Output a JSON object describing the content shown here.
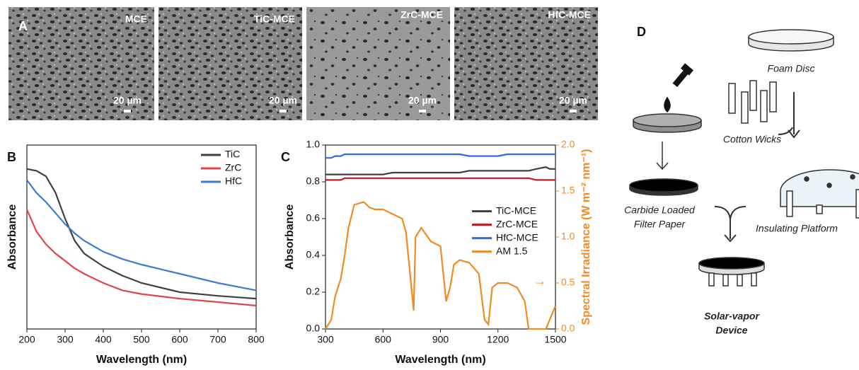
{
  "panel_a": {
    "label": "A",
    "images": [
      {
        "title": "MCE",
        "scale": "20 µm"
      },
      {
        "title": "TiC-MCE",
        "scale": "20 µm"
      },
      {
        "title": "ZrC-MCE",
        "scale": "20 µm"
      },
      {
        "title": "HfC-MCE",
        "scale": "20 µm"
      }
    ]
  },
  "chart_data": [
    {
      "type": "line",
      "panel_label": "B",
      "x_label": "Wavelength (nm)",
      "y_label": "Absorbance",
      "x": [
        200,
        225,
        250,
        275,
        300,
        325,
        350,
        400,
        450,
        500,
        600,
        700,
        800
      ],
      "series": [
        {
          "name": "TiC",
          "color": "#404040",
          "values": [
            0.87,
            0.86,
            0.83,
            0.74,
            0.6,
            0.48,
            0.41,
            0.34,
            0.29,
            0.25,
            0.2,
            0.18,
            0.165
          ]
        },
        {
          "name": "ZrC",
          "color": "#e0454c",
          "values": [
            0.65,
            0.53,
            0.46,
            0.41,
            0.37,
            0.33,
            0.3,
            0.25,
            0.21,
            0.19,
            0.165,
            0.146,
            0.127
          ]
        },
        {
          "name": "HfC",
          "color": "#3a7bd5",
          "values": [
            0.81,
            0.74,
            0.69,
            0.63,
            0.57,
            0.52,
            0.48,
            0.42,
            0.38,
            0.35,
            0.3,
            0.25,
            0.21
          ]
        }
      ],
      "xlim": [
        200,
        800
      ],
      "xticks": [
        200,
        300,
        400,
        500,
        600,
        700,
        800
      ],
      "ylim": [
        0,
        1
      ],
      "yticks": [],
      "legend": "upper right"
    },
    {
      "type": "line",
      "panel_label": "C",
      "x_label": "Wavelength (nm)",
      "y_label": "Absorbance",
      "y2_label": "Spectral Irradiance (W m⁻² nm⁻¹)",
      "annotation": "→",
      "x": [
        300,
        330,
        350,
        380,
        400,
        420,
        450,
        480,
        500,
        530,
        560,
        600,
        650,
        700,
        720,
        760,
        770,
        800,
        850,
        900,
        930,
        950,
        970,
        1000,
        1050,
        1100,
        1130,
        1150,
        1170,
        1200,
        1250,
        1300,
        1340,
        1360,
        1400,
        1450,
        1470,
        1500
      ],
      "series": [
        {
          "name": "TiC-MCE",
          "color": "#404040",
          "values": [
            0.84,
            0.84,
            0.84,
            0.84,
            0.84,
            0.84,
            0.84,
            0.84,
            0.84,
            0.84,
            0.84,
            0.84,
            0.85,
            0.85,
            0.85,
            0.85,
            0.85,
            0.85,
            0.85,
            0.85,
            0.85,
            0.85,
            0.85,
            0.85,
            0.86,
            0.86,
            0.86,
            0.86,
            0.86,
            0.86,
            0.86,
            0.86,
            0.86,
            0.86,
            0.87,
            0.88,
            0.87,
            0.87
          ]
        },
        {
          "name": "ZrC-MCE",
          "color": "#c8161d",
          "values": [
            0.81,
            0.81,
            0.81,
            0.81,
            0.82,
            0.82,
            0.82,
            0.82,
            0.82,
            0.82,
            0.82,
            0.82,
            0.82,
            0.82,
            0.82,
            0.82,
            0.82,
            0.82,
            0.82,
            0.82,
            0.82,
            0.82,
            0.82,
            0.82,
            0.82,
            0.82,
            0.82,
            0.82,
            0.82,
            0.82,
            0.82,
            0.82,
            0.82,
            0.82,
            0.81,
            0.81,
            0.81,
            0.81
          ]
        },
        {
          "name": "HfC-MCE",
          "color": "#2a6de0",
          "values": [
            0.93,
            0.93,
            0.94,
            0.94,
            0.95,
            0.95,
            0.95,
            0.95,
            0.95,
            0.95,
            0.95,
            0.95,
            0.95,
            0.95,
            0.95,
            0.95,
            0.95,
            0.95,
            0.95,
            0.95,
            0.95,
            0.95,
            0.95,
            0.95,
            0.94,
            0.94,
            0.94,
            0.94,
            0.94,
            0.94,
            0.95,
            0.95,
            0.95,
            0.95,
            0.95,
            0.95,
            0.95,
            0.95
          ]
        },
        {
          "name": "AM 1.5",
          "color": "#f28a25",
          "axis": "y2",
          "values": [
            0,
            0.1,
            0.35,
            0.55,
            0.8,
            1.1,
            1.35,
            1.37,
            1.38,
            1.32,
            1.3,
            1.3,
            1.25,
            1.2,
            1.05,
            0.2,
            1.0,
            1.1,
            0.95,
            0.9,
            0.3,
            0.45,
            0.7,
            0.75,
            0.72,
            0.6,
            0.1,
            0.05,
            0.45,
            0.5,
            0.5,
            0.45,
            0.3,
            0,
            0,
            0,
            0.1,
            0.25
          ]
        }
      ],
      "xlim": [
        300,
        1500
      ],
      "xticks": [
        300,
        600,
        900,
        1200,
        1500
      ],
      "ylim": [
        0,
        1
      ],
      "yticks": [
        {
          "value": 0,
          "label": "0.0"
        },
        0.2,
        0.4,
        0.6,
        0.8,
        {
          "value": 1,
          "label": "1.0"
        }
      ],
      "y2lim": [
        0,
        2
      ],
      "y2ticks": [
        {
          "value": 0,
          "label": "0.0"
        },
        0.5,
        {
          "value": 1,
          "label": "1.0"
        },
        1.5,
        {
          "value": 2,
          "label": "2.0"
        }
      ],
      "legend": "center right"
    }
  ],
  "panel_d": {
    "label": "D",
    "foam_disc": "Foam Disc",
    "cotton_wicks": "Cotton Wicks",
    "filter_paper": [
      "Carbide Loaded",
      "Filter Paper"
    ],
    "platform": "Insulating Platform",
    "device": [
      "Solar-vapor",
      "Device"
    ]
  }
}
